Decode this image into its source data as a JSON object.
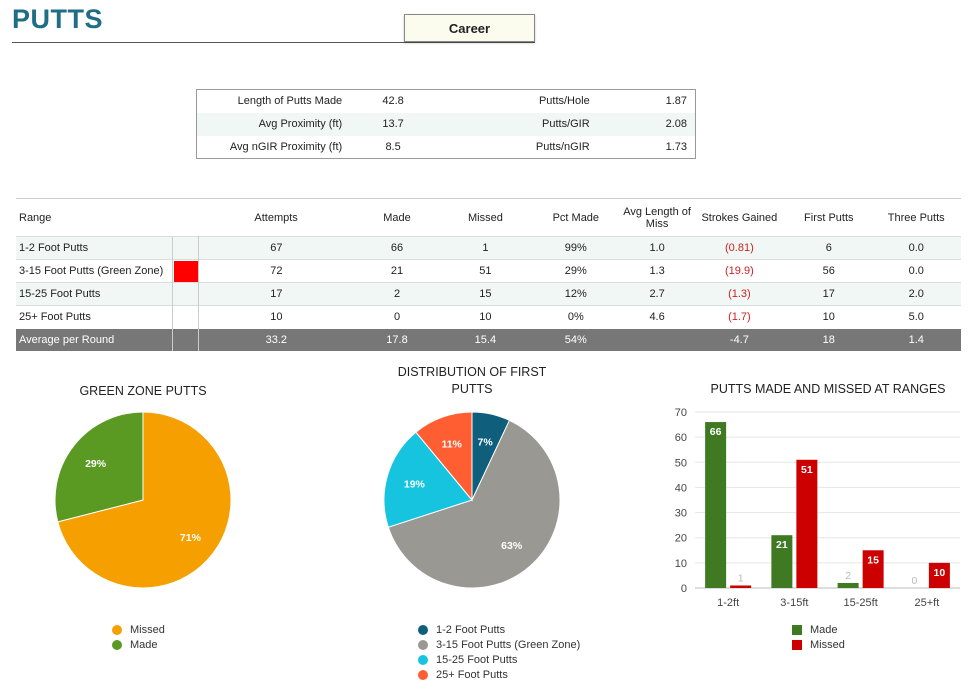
{
  "header": {
    "title": "PUTTS",
    "period": "Career"
  },
  "summary": [
    {
      "label1": "Length of Putts Made",
      "value1": "42.8",
      "label2": "Putts/Hole",
      "value2": "1.87"
    },
    {
      "label1": "Avg Proximity (ft)",
      "value1": "13.7",
      "label2": "Putts/GIR",
      "value2": "2.08"
    },
    {
      "label1": "Avg nGIR Proximity (ft)",
      "value1": "8.5",
      "label2": "Putts/nGIR",
      "value2": "1.73"
    }
  ],
  "stats": {
    "headers": [
      "Range",
      "Attempts",
      "Made",
      "Missed",
      "Pct Made",
      "Avg Length of Miss",
      "Strokes Gained",
      "First Putts",
      "Three Putts"
    ],
    "rows": [
      {
        "range": "1-2 Foot Putts",
        "attempts": "67",
        "made": "66",
        "missed": "1",
        "pct": "99%",
        "avg_miss": "1.0",
        "sg": "(0.81)",
        "first": "6",
        "three": "0.0",
        "swatch": ""
      },
      {
        "range": "3-15 Foot Putts (Green Zone)",
        "attempts": "72",
        "made": "21",
        "missed": "51",
        "pct": "29%",
        "avg_miss": "1.3",
        "sg": "(19.9)",
        "first": "56",
        "three": "0.0",
        "swatch": "#ff0000"
      },
      {
        "range": "15-25 Foot Putts",
        "attempts": "17",
        "made": "2",
        "missed": "15",
        "pct": "12%",
        "avg_miss": "2.7",
        "sg": "(1.3)",
        "first": "17",
        "three": "2.0",
        "swatch": ""
      },
      {
        "range": "25+ Foot Putts",
        "attempts": "10",
        "made": "0",
        "missed": "10",
        "pct": "0%",
        "avg_miss": "4.6",
        "sg": "(1.7)",
        "first": "10",
        "three": "5.0",
        "swatch": ""
      }
    ],
    "average": {
      "range": "Average per Round",
      "attempts": "33.2",
      "made": "17.8",
      "missed": "15.4",
      "pct": "54%",
      "avg_miss": "",
      "sg": "-4.7",
      "first": "18",
      "three": "1.4"
    }
  },
  "chart_data": [
    {
      "type": "pie",
      "title": "GREEN ZONE PUTTS",
      "slices": [
        {
          "label": "Missed",
          "value": 71,
          "color": "#f5a000"
        },
        {
          "label": "Made",
          "value": 29,
          "color": "#5a9a22"
        }
      ],
      "legend_position": "bottom"
    },
    {
      "type": "pie",
      "title": "DISTRIBUTION OF FIRST PUTTS",
      "slices": [
        {
          "label": "1-2 Foot Putts",
          "value": 7,
          "color": "#0e5e7c"
        },
        {
          "label": "3-15 Foot Putts (Green Zone)",
          "value": 63,
          "color": "#9a9893"
        },
        {
          "label": "15-25 Foot Putts",
          "value": 19,
          "color": "#17c4e0"
        },
        {
          "label": "25+ Foot Putts",
          "value": 11,
          "color": "#ff5e33"
        }
      ],
      "legend_position": "bottom"
    },
    {
      "type": "bar",
      "title": "PUTTS MADE AND MISSED AT RANGES",
      "categories": [
        "1-2ft",
        "3-15ft",
        "15-25ft",
        "25+ft"
      ],
      "series": [
        {
          "name": "Made",
          "values": [
            66,
            21,
            2,
            0
          ],
          "color": "#3f7a22"
        },
        {
          "name": "Missed",
          "values": [
            1,
            51,
            15,
            10
          ],
          "color": "#cc0000"
        }
      ],
      "ylim": [
        0,
        70
      ],
      "yticks": [
        0,
        10,
        20,
        30,
        40,
        50,
        60,
        70
      ],
      "legend_position": "bottom"
    }
  ]
}
